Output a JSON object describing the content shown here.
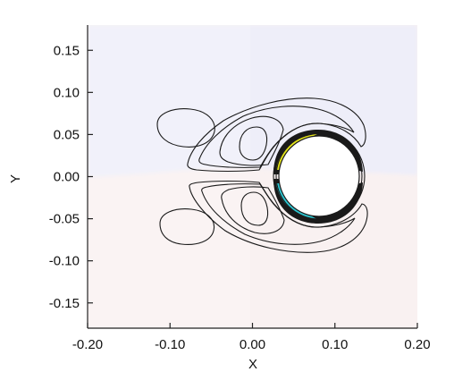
{
  "chart_data": {
    "type": "contour",
    "title": "",
    "xlabel": "X",
    "ylabel": "Y",
    "xlim": [
      -0.2,
      0.2
    ],
    "ylim": [
      -0.18,
      0.18
    ],
    "x_ticks": [
      "-0.20",
      "-0.10",
      "0.00",
      "0.10",
      "0.20"
    ],
    "x_tick_values": [
      -0.2,
      -0.1,
      0.0,
      0.1,
      0.2
    ],
    "y_ticks": [
      "0.15",
      "0.10",
      "0.05",
      "0.00",
      "-0.05",
      "-0.10",
      "-0.15"
    ],
    "y_tick_values": [
      0.15,
      0.1,
      0.05,
      0.0,
      -0.05,
      -0.1,
      -0.15
    ],
    "grid": false,
    "legend": false,
    "cylinder": {
      "center": [
        0.075,
        0.0
      ],
      "radius": 0.05
    },
    "background_fields": [
      {
        "region": "upper",
        "level": "slightly negative",
        "color": "#eeeef9"
      },
      {
        "region": "lower",
        "level": "slightly positive",
        "color": "#f9f1f1"
      }
    ],
    "vortex_features": [
      {
        "name": "upper near-wake vortex",
        "sign": "negative",
        "center": [
          0.0,
          0.03
        ],
        "levels": [
          "#c9d3f0",
          "#8eb5e2",
          "#5fa9cf",
          "#3fb6c6"
        ]
      },
      {
        "name": "lower near-wake vortex",
        "sign": "positive",
        "center": [
          0.0,
          -0.03
        ],
        "levels": [
          "#f3d3cc",
          "#e9ae8e",
          "#d69a4f",
          "#cbb424"
        ]
      },
      {
        "name": "shed positive vortex",
        "sign": "positive",
        "center": [
          -0.095,
          0.055
        ],
        "color": "#f7d9d8"
      },
      {
        "name": "shed negative vortex",
        "sign": "negative",
        "center": [
          -0.095,
          -0.05
        ],
        "color": "#dcdcf4"
      }
    ],
    "surface_layers": [
      {
        "side": "upper",
        "color": "#e4e41a"
      },
      {
        "side": "lower",
        "color": "#2cc4cf"
      }
    ]
  }
}
